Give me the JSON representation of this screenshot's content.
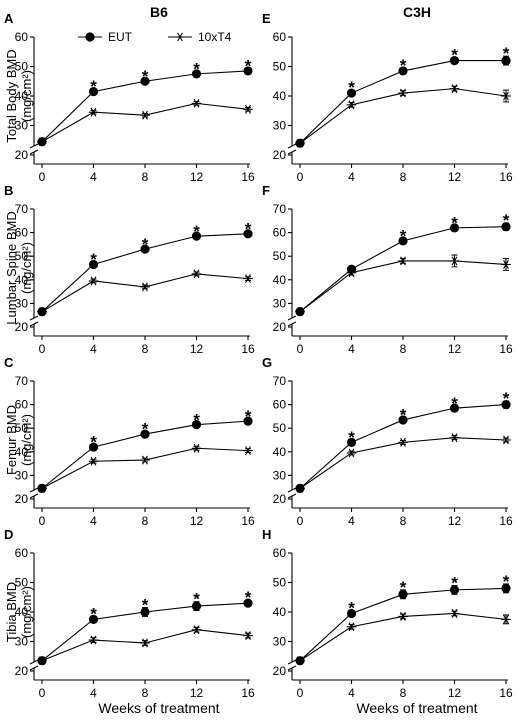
{
  "colors": {
    "EUT": "#000000",
    "10xT4": "#000000"
  },
  "strain_titles": [
    "B6",
    "C3H"
  ],
  "legend": {
    "items": [
      {
        "name": "EUT",
        "marker": "filled-circle"
      },
      {
        "name": "10xT4",
        "marker": "asterisk"
      }
    ],
    "placement": "top (panel A)"
  },
  "xlabel": "Weeks of treatment",
  "chart_data": [
    {
      "type": "line",
      "panel": "A",
      "strain": "B6",
      "ylabel": "Total Body BMD (mg/cm²)",
      "ylabel_main": "Total Body BMD",
      "ylabel_units": "(mg/cm²)",
      "x": [
        0,
        4,
        8,
        12,
        16
      ],
      "xlim": [
        0,
        16
      ],
      "ylim": [
        20,
        60
      ],
      "yticks": [
        20,
        30,
        40,
        50,
        60
      ],
      "ybreak": true,
      "series": [
        {
          "name": "EUT",
          "values": [
            24.5,
            41.5,
            45,
            47.5,
            48.5
          ],
          "err": [
            0.5,
            0.8,
            0.8,
            0.8,
            0.8
          ]
        },
        {
          "name": "10xT4",
          "values": [
            24.5,
            34.5,
            33.5,
            37.5,
            35.5
          ],
          "err": [
            0.5,
            0.6,
            0.6,
            0.6,
            0.6
          ]
        }
      ],
      "significance": [
        4,
        8,
        12,
        16
      ]
    },
    {
      "type": "line",
      "panel": "B",
      "strain": "B6",
      "ylabel": "Lumbar Spine BMD (mg/cm²)",
      "ylabel_main": "Lumbar Spine BMD",
      "ylabel_units": "(mg/cm²)",
      "x": [
        0,
        4,
        8,
        12,
        16
      ],
      "xlim": [
        0,
        16
      ],
      "ylim": [
        20,
        70
      ],
      "yticks": [
        20,
        30,
        40,
        50,
        60,
        70
      ],
      "ybreak": true,
      "series": [
        {
          "name": "EUT",
          "values": [
            26.5,
            46.5,
            53,
            58.5,
            59.5
          ],
          "err": [
            0.5,
            1,
            1,
            1,
            1
          ]
        },
        {
          "name": "10xT4",
          "values": [
            26.5,
            39.5,
            37,
            42.5,
            40.5
          ],
          "err": [
            0.5,
            0.8,
            0.8,
            0.8,
            0.8
          ]
        }
      ],
      "significance": [
        4,
        8,
        12,
        16
      ]
    },
    {
      "type": "line",
      "panel": "C",
      "strain": "B6",
      "ylabel": "Femur BMD (mg/cm²)",
      "ylabel_main": "Femur BMD",
      "ylabel_units": "(mg/cm²)",
      "x": [
        0,
        4,
        8,
        12,
        16
      ],
      "xlim": [
        0,
        16
      ],
      "ylim": [
        20,
        70
      ],
      "yticks": [
        20,
        30,
        40,
        50,
        60,
        70
      ],
      "ybreak": true,
      "series": [
        {
          "name": "EUT",
          "values": [
            24.5,
            42,
            47.5,
            51.5,
            53
          ],
          "err": [
            0.5,
            1,
            1,
            1,
            1
          ]
        },
        {
          "name": "10xT4",
          "values": [
            24.5,
            36,
            36.5,
            41.5,
            40.5
          ],
          "err": [
            0.5,
            0.8,
            0.8,
            0.8,
            0.8
          ]
        }
      ],
      "significance": [
        4,
        8,
        12,
        16
      ]
    },
    {
      "type": "line",
      "panel": "D",
      "strain": "B6",
      "ylabel": "Tibia BMD (mg/cm²)",
      "ylabel_main": "Tibia BMD",
      "ylabel_units": "(mg/cm²)",
      "x": [
        0,
        4,
        8,
        12,
        16
      ],
      "xlim": [
        0,
        16
      ],
      "ylim": [
        20,
        60
      ],
      "yticks": [
        20,
        30,
        40,
        50,
        60
      ],
      "ybreak": true,
      "series": [
        {
          "name": "EUT",
          "values": [
            23.5,
            37.5,
            40,
            42,
            43
          ],
          "err": [
            0.5,
            1,
            1.5,
            1.5,
            1
          ]
        },
        {
          "name": "10xT4",
          "values": [
            23.5,
            30.5,
            29.5,
            34,
            32
          ],
          "err": [
            0.5,
            0.8,
            0.8,
            0.8,
            0.8
          ]
        }
      ],
      "significance": [
        4,
        8,
        12,
        16
      ]
    },
    {
      "type": "line",
      "panel": "E",
      "strain": "C3H",
      "ylabel": "",
      "ylabel_main": "",
      "ylabel_units": "",
      "x": [
        0,
        4,
        8,
        12,
        16
      ],
      "xlim": [
        0,
        16
      ],
      "ylim": [
        20,
        60
      ],
      "yticks": [
        20,
        30,
        40,
        50,
        60
      ],
      "ybreak": true,
      "series": [
        {
          "name": "EUT",
          "values": [
            24,
            41,
            48.5,
            52,
            52
          ],
          "err": [
            0.5,
            1,
            1,
            1,
            1.5
          ]
        },
        {
          "name": "10xT4",
          "values": [
            24,
            37,
            41,
            42.5,
            40
          ],
          "err": [
            0.5,
            0.8,
            0.8,
            0.8,
            2
          ]
        }
      ],
      "significance": [
        4,
        8,
        12,
        16
      ]
    },
    {
      "type": "line",
      "panel": "F",
      "strain": "C3H",
      "ylabel": "",
      "ylabel_main": "",
      "ylabel_units": "",
      "x": [
        0,
        4,
        8,
        12,
        16
      ],
      "xlim": [
        0,
        16
      ],
      "ylim": [
        20,
        70
      ],
      "yticks": [
        20,
        30,
        40,
        50,
        60,
        70
      ],
      "ybreak": true,
      "series": [
        {
          "name": "EUT",
          "values": [
            26.5,
            44.5,
            56.5,
            62,
            62.5
          ],
          "err": [
            0.5,
            1,
            1,
            1,
            1.5
          ]
        },
        {
          "name": "10xT4",
          "values": [
            26.5,
            43,
            48,
            48,
            46.5
          ],
          "err": [
            0.5,
            1,
            1,
            2.5,
            2.5
          ]
        }
      ],
      "significance": [
        8,
        12,
        16
      ]
    },
    {
      "type": "line",
      "panel": "G",
      "strain": "C3H",
      "ylabel": "",
      "ylabel_main": "",
      "ylabel_units": "",
      "x": [
        0,
        4,
        8,
        12,
        16
      ],
      "xlim": [
        0,
        16
      ],
      "ylim": [
        20,
        70
      ],
      "yticks": [
        20,
        30,
        40,
        50,
        60,
        70
      ],
      "ybreak": true,
      "series": [
        {
          "name": "EUT",
          "values": [
            24.5,
            44,
            53.5,
            58.5,
            60
          ],
          "err": [
            0.5,
            1,
            1,
            1,
            1.5
          ]
        },
        {
          "name": "10xT4",
          "values": [
            24.5,
            39.5,
            44,
            46,
            45
          ],
          "err": [
            0.5,
            0.8,
            0.8,
            0.8,
            0.8
          ]
        }
      ],
      "significance": [
        4,
        8,
        12,
        16
      ]
    },
    {
      "type": "line",
      "panel": "H",
      "strain": "C3H",
      "ylabel": "",
      "ylabel_main": "",
      "ylabel_units": "",
      "x": [
        0,
        4,
        8,
        12,
        16
      ],
      "xlim": [
        0,
        16
      ],
      "ylim": [
        20,
        60
      ],
      "yticks": [
        20,
        30,
        40,
        50,
        60
      ],
      "ybreak": true,
      "series": [
        {
          "name": "EUT",
          "values": [
            23.5,
            39.5,
            46,
            47.5,
            48
          ],
          "err": [
            0.5,
            1,
            1.5,
            1.5,
            1.5
          ]
        },
        {
          "name": "10xT4",
          "values": [
            23.5,
            35,
            38.5,
            39.5,
            37.5
          ],
          "err": [
            0.5,
            0.8,
            0.8,
            0.8,
            1.5
          ]
        }
      ],
      "significance": [
        4,
        8,
        12,
        16
      ]
    }
  ]
}
